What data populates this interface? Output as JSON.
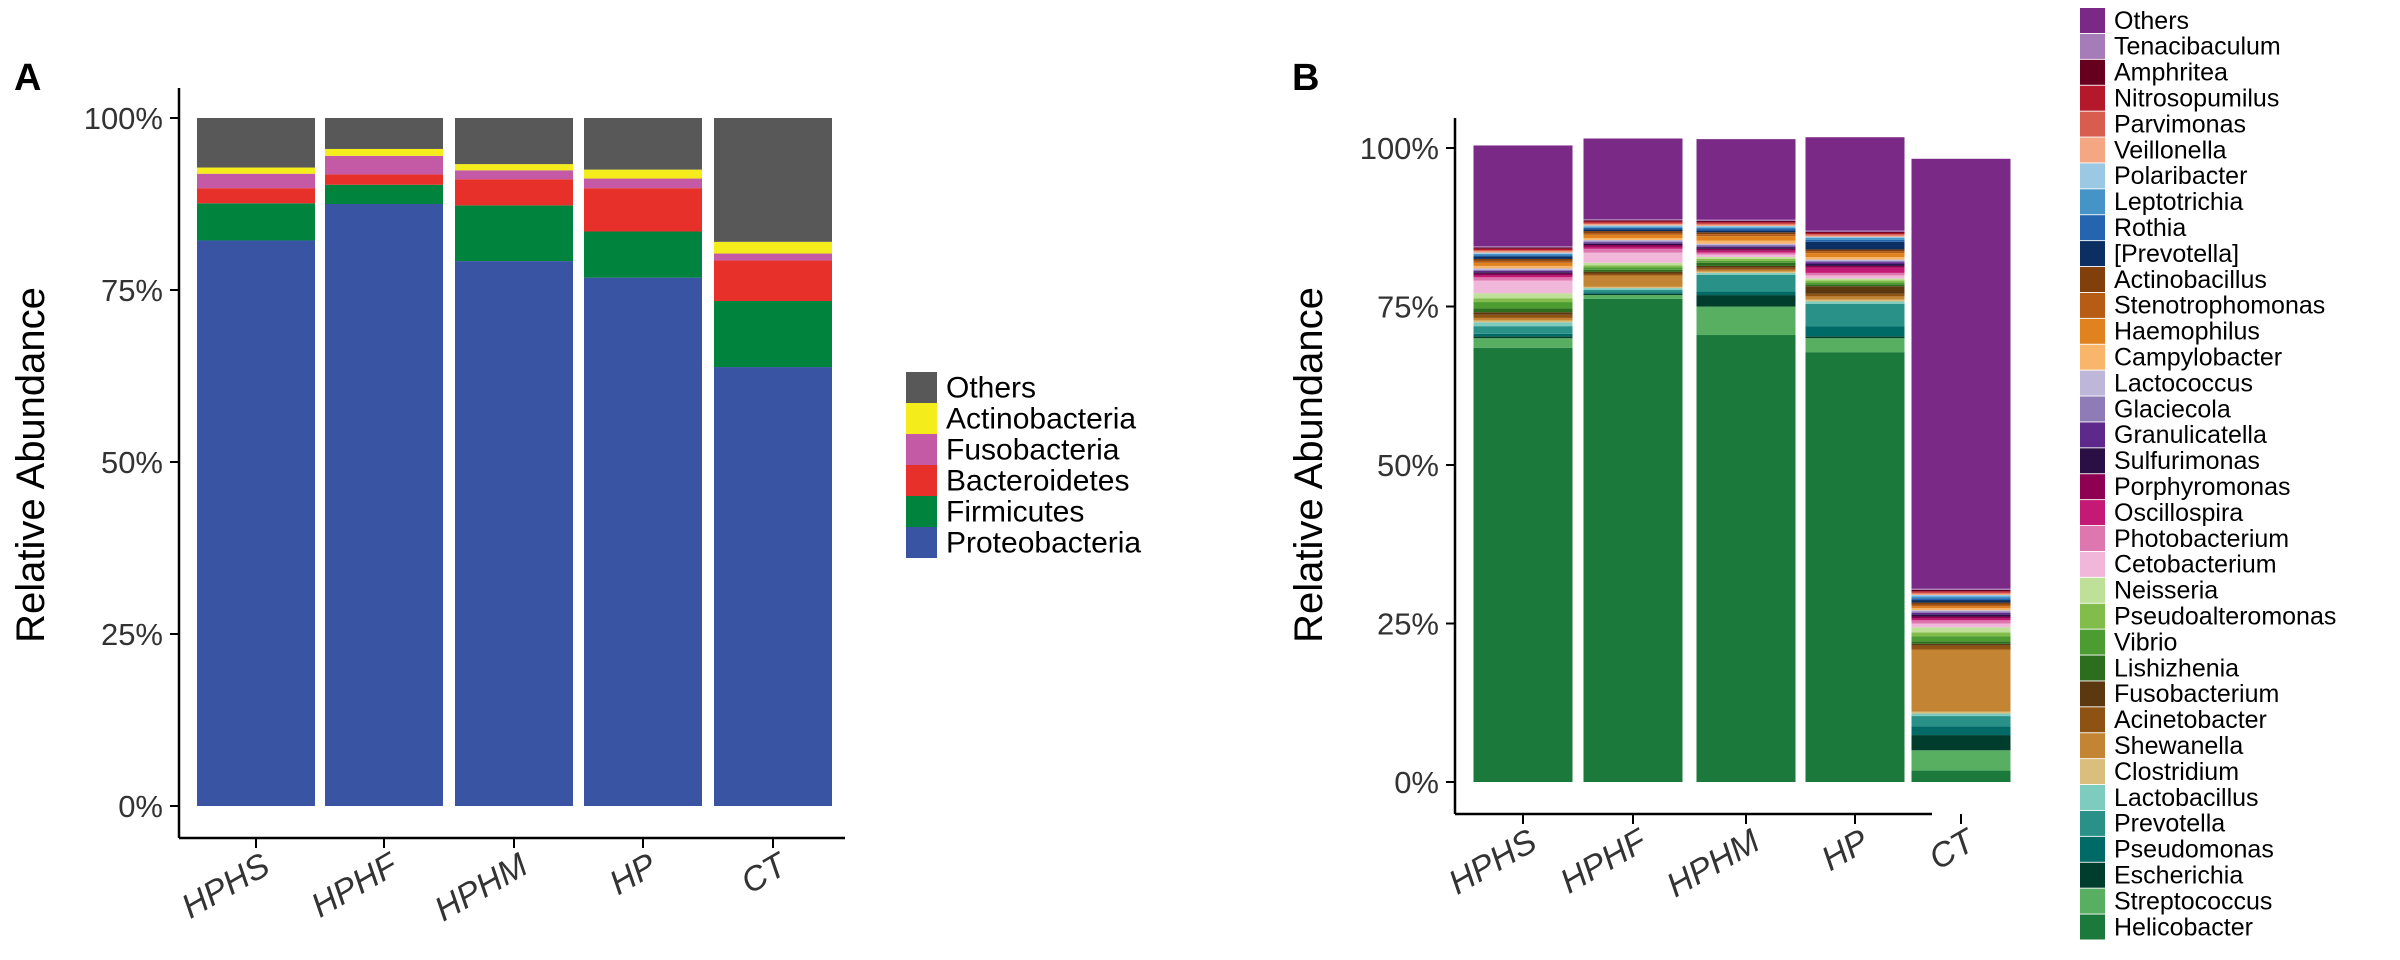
{
  "chart_data": [
    {
      "panel_label": "A",
      "type": "bar",
      "stacked": true,
      "title": "",
      "xlabel": "",
      "ylabel": "Relative Abundance",
      "ylim": [
        0,
        100
      ],
      "yticks": [
        "0%",
        "25%",
        "50%",
        "75%",
        "100%"
      ],
      "categories": [
        "HPHS",
        "HPHF",
        "HPHM",
        "HP",
        "CT"
      ],
      "legend": [
        "Others",
        "Actinobacteria",
        "Fusobacteria",
        "Bacteroidetes",
        "Firmicutes",
        "Proteobacteria"
      ],
      "series": [
        {
          "name": "Proteobacteria",
          "color": "#3A54A4",
          "values": [
            82.2,
            87.5,
            79.2,
            76.8,
            63.8
          ]
        },
        {
          "name": "Firmicutes",
          "color": "#00843D",
          "values": [
            5.4,
            2.8,
            8.1,
            6.7,
            9.6
          ]
        },
        {
          "name": "Bacteroidetes",
          "color": "#E8302A",
          "values": [
            2.2,
            1.5,
            3.8,
            6.3,
            5.9
          ]
        },
        {
          "name": "Fusobacteria",
          "color": "#C45AA6",
          "values": [
            2.1,
            2.7,
            1.3,
            1.4,
            1.0
          ]
        },
        {
          "name": "Actinobacteria",
          "color": "#F5EC1B",
          "values": [
            0.9,
            1.0,
            0.9,
            1.3,
            1.7
          ]
        },
        {
          "name": "Others",
          "color": "#585858",
          "values": [
            7.2,
            4.5,
            6.7,
            7.5,
            18.0
          ]
        }
      ]
    },
    {
      "panel_label": "B",
      "type": "bar",
      "stacked": true,
      "title": "",
      "xlabel": "",
      "ylabel": "Relative Abundance",
      "ylim": [
        0,
        100
      ],
      "yticks": [
        "0%",
        "25%",
        "50%",
        "75%",
        "100%"
      ],
      "categories": [
        "HPHS",
        "HPHF",
        "HPHM",
        "HP",
        "CT"
      ],
      "legend": [
        "Others",
        "Tenacibaculum",
        "Amphritea",
        "Nitrosopumilus",
        "Parvimonas",
        "Veillonella",
        "Polaribacter",
        "Leptotrichia",
        "Rothia",
        "[Prevotella]",
        "Actinobacillus",
        "Stenotrophomonas",
        "Haemophilus",
        "Campylobacter",
        "Lactococcus",
        "Glaciecola",
        "Granulicatella",
        "Sulfurimonas",
        "Porphyromonas",
        "Oscillospira",
        "Photobacterium",
        "Cetobacterium",
        "Neisseria",
        "Pseudoalteromonas",
        "Vibrio",
        "Lishizhenia",
        "Fusobacterium",
        "Acinetobacter",
        "Shewanella",
        "Clostridium",
        "Lactobacillus",
        "Prevotella",
        "Pseudomonas",
        "Escherichia",
        "Streptococcus",
        "Helicobacter"
      ],
      "series": [
        {
          "name": "Helicobacter",
          "color": "#1B7A3B",
          "values": [
            68.5,
            76.2,
            70.5,
            67.8,
            1.8
          ]
        },
        {
          "name": "Streptococcus",
          "color": "#58AF62",
          "values": [
            1.5,
            0.6,
            4.5,
            2.2,
            3.2
          ]
        },
        {
          "name": "Escherichia",
          "color": "#013D2D",
          "values": [
            0.3,
            0.2,
            1.8,
            0.3,
            2.4
          ]
        },
        {
          "name": "Pseudomonas",
          "color": "#006B66",
          "values": [
            0.4,
            0.2,
            0.6,
            1.6,
            1.4
          ]
        },
        {
          "name": "Prevotella",
          "color": "#2A9189",
          "values": [
            1.2,
            0.4,
            2.6,
            3.5,
            1.6
          ]
        },
        {
          "name": "Lactobacillus",
          "color": "#7ECBC0",
          "values": [
            0.6,
            0.3,
            0.3,
            0.4,
            0.4
          ]
        },
        {
          "name": "Clostridium",
          "color": "#D9BE7E",
          "values": [
            0.3,
            0.2,
            0.2,
            0.3,
            0.3
          ]
        },
        {
          "name": "Shewanella",
          "color": "#C38534",
          "values": [
            0.4,
            1.8,
            0.3,
            0.5,
            9.8
          ]
        },
        {
          "name": "Acinetobacter",
          "color": "#8E5212",
          "values": [
            0.5,
            0.3,
            0.3,
            0.4,
            0.6
          ]
        },
        {
          "name": "Fusobacterium",
          "color": "#5C3810",
          "values": [
            0.4,
            0.3,
            0.3,
            1.2,
            0.3
          ]
        },
        {
          "name": "Lishizhenia",
          "color": "#2D6E1E",
          "values": [
            0.6,
            0.3,
            0.5,
            0.3,
            0.4
          ]
        },
        {
          "name": "Vibrio",
          "color": "#4D9C32",
          "values": [
            1.0,
            0.4,
            0.3,
            0.3,
            0.8
          ]
        },
        {
          "name": "Pseudoalteromonas",
          "color": "#82BC4A",
          "values": [
            0.6,
            0.3,
            0.3,
            0.3,
            0.6
          ]
        },
        {
          "name": "Neisseria",
          "color": "#BFE098",
          "values": [
            0.8,
            0.4,
            0.3,
            0.3,
            0.8
          ]
        },
        {
          "name": "Cetobacterium",
          "color": "#F1B7DA",
          "values": [
            2.0,
            1.6,
            0.4,
            0.5,
            0.6
          ]
        },
        {
          "name": "Photobacterium",
          "color": "#DE77B0",
          "values": [
            0.5,
            0.6,
            0.3,
            0.4,
            0.5
          ]
        },
        {
          "name": "Oscillospira",
          "color": "#C41A75",
          "values": [
            0.3,
            0.3,
            0.3,
            0.8,
            0.3
          ]
        },
        {
          "name": "Porphyromonas",
          "color": "#8E0152",
          "values": [
            0.3,
            0.3,
            0.3,
            0.3,
            0.3
          ]
        },
        {
          "name": "Sulfurimonas",
          "color": "#2A0F45",
          "values": [
            0.2,
            0.2,
            0.2,
            0.3,
            0.3
          ]
        },
        {
          "name": "Granulicatella",
          "color": "#5D2A8C",
          "values": [
            0.2,
            0.2,
            0.2,
            0.3,
            0.3
          ]
        },
        {
          "name": "Glaciecola",
          "color": "#8F7BB6",
          "values": [
            0.2,
            0.2,
            0.2,
            0.2,
            0.2
          ]
        },
        {
          "name": "Lactococcus",
          "color": "#BEB7DA",
          "values": [
            0.2,
            0.2,
            0.2,
            0.2,
            0.2
          ]
        },
        {
          "name": "Campylobacter",
          "color": "#F9B66A",
          "values": [
            0.4,
            0.3,
            0.5,
            0.4,
            0.3
          ]
        },
        {
          "name": "Haemophilus",
          "color": "#E0821E",
          "values": [
            0.5,
            0.5,
            0.7,
            0.6,
            0.3
          ]
        },
        {
          "name": "Stenotrophomonas",
          "color": "#B65C15",
          "values": [
            0.3,
            0.3,
            0.3,
            0.3,
            0.3
          ]
        },
        {
          "name": "Actinobacillus",
          "color": "#803F0B",
          "values": [
            0.3,
            0.3,
            0.3,
            0.3,
            0.3
          ]
        },
        {
          "name": "[Prevotella]",
          "color": "#0B2F62",
          "values": [
            0.4,
            0.3,
            0.3,
            1.2,
            0.4
          ]
        },
        {
          "name": "Rothia",
          "color": "#2564AE",
          "values": [
            0.2,
            0.2,
            0.3,
            0.3,
            0.3
          ]
        },
        {
          "name": "Leptotrichia",
          "color": "#4494C8",
          "values": [
            0.2,
            0.2,
            0.2,
            0.3,
            0.3
          ]
        },
        {
          "name": "Polaribacter",
          "color": "#9BC8E2",
          "values": [
            0.2,
            0.2,
            0.2,
            0.2,
            0.2
          ]
        },
        {
          "name": "Veillonella",
          "color": "#F5A683",
          "values": [
            0.2,
            0.2,
            0.2,
            0.2,
            0.2
          ]
        },
        {
          "name": "Parvimonas",
          "color": "#D95D4F",
          "values": [
            0.2,
            0.2,
            0.2,
            0.2,
            0.2
          ]
        },
        {
          "name": "Nitrosopumilus",
          "color": "#B6182B",
          "values": [
            0.2,
            0.2,
            0.2,
            0.2,
            0.2
          ]
        },
        {
          "name": "Amphritea",
          "color": "#67001F",
          "values": [
            0.2,
            0.2,
            0.2,
            0.2,
            0.2
          ]
        },
        {
          "name": "Tenacibaculum",
          "color": "#A57CB8",
          "values": [
            0.2,
            0.2,
            0.2,
            0.2,
            0.2
          ]
        },
        {
          "name": "Others",
          "color": "#7A2A86",
          "values": [
            15.9,
            12.7,
            12.7,
            14.7,
            67.8
          ]
        }
      ]
    }
  ]
}
